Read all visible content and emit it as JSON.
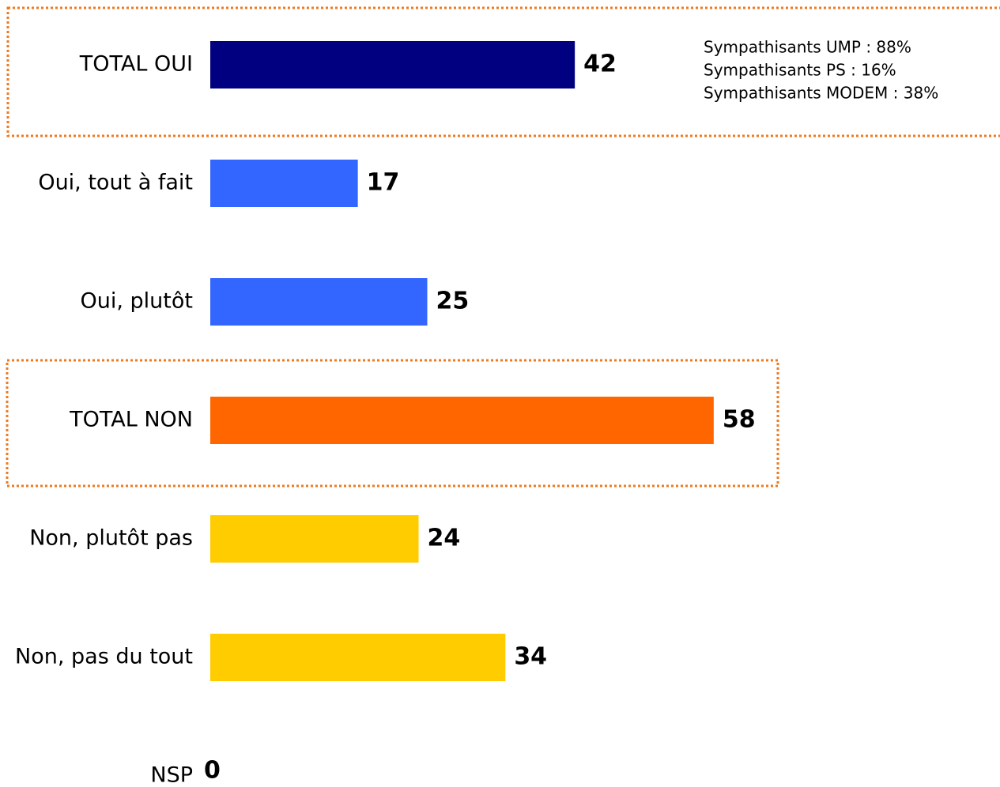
{
  "chart_data": {
    "type": "hbar",
    "categories": [
      "TOTAL OUI",
      "Oui, tout à fait",
      "Oui, plutôt",
      "TOTAL NON",
      "Non, plutôt pas",
      "Non, pas du tout",
      "NSP"
    ],
    "values": [
      42,
      17,
      25,
      58,
      24,
      34,
      0
    ],
    "colors": [
      "#000080",
      "#3366ff",
      "#3366ff",
      "#ff6600",
      "#ffcc00",
      "#ffcc00",
      "#ffcc00"
    ],
    "annotations": [
      "Sympathisants UMP : 88%",
      "Sympathisants PS : 16%",
      "Sympathisants MODEM : 38%"
    ]
  }
}
